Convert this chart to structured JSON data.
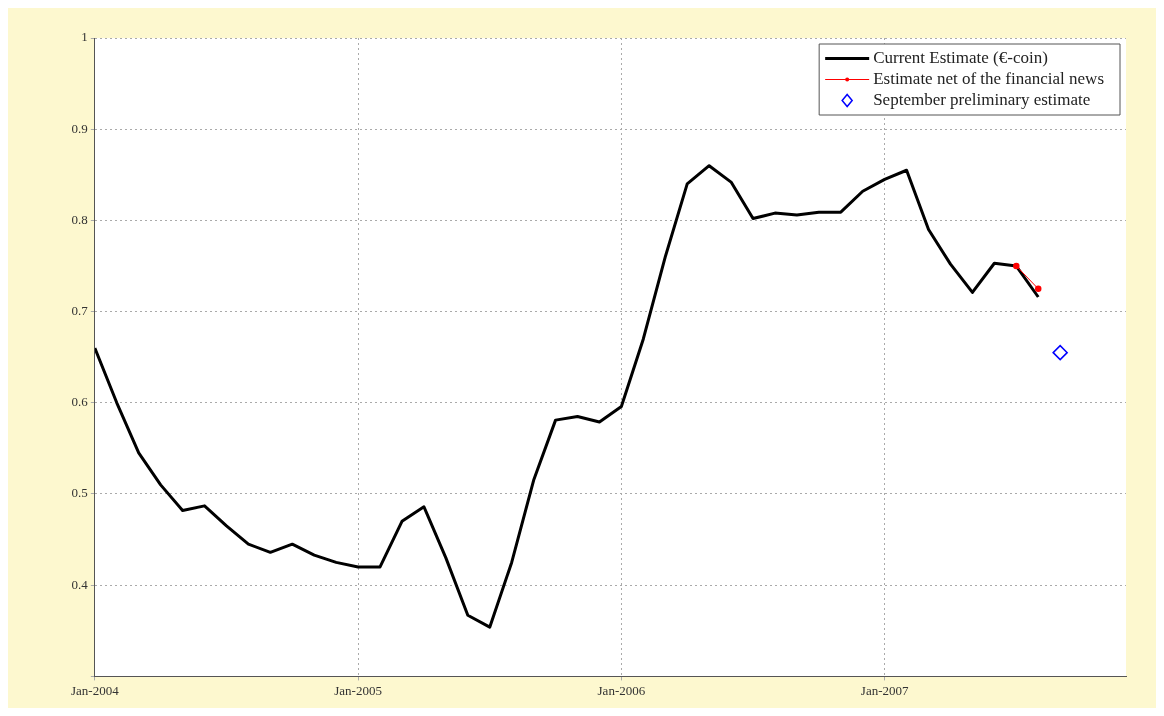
{
  "chart_data": {
    "type": "line",
    "x": [
      "2004-01",
      "2004-02",
      "2004-03",
      "2004-04",
      "2004-05",
      "2004-06",
      "2004-07",
      "2004-08",
      "2004-09",
      "2004-10",
      "2004-11",
      "2004-12",
      "2005-01",
      "2005-02",
      "2005-03",
      "2005-04",
      "2005-05",
      "2005-06",
      "2005-07",
      "2005-08",
      "2005-09",
      "2005-10",
      "2005-11",
      "2005-12",
      "2006-01",
      "2006-02",
      "2006-03",
      "2006-04",
      "2006-05",
      "2006-06",
      "2006-07",
      "2006-08",
      "2006-09",
      "2006-10",
      "2006-11",
      "2006-12",
      "2007-01",
      "2007-02",
      "2007-03",
      "2007-04",
      "2007-05",
      "2007-06",
      "2007-07",
      "2007-08"
    ],
    "series": [
      {
        "name": "Current Estimate (€-coin)",
        "color": "#000000",
        "marker": "none",
        "values": [
          0.66,
          0.6,
          0.545,
          0.51,
          0.482,
          0.487,
          0.465,
          0.445,
          0.436,
          0.445,
          0.433,
          0.425,
          0.42,
          0.42,
          0.47,
          0.486,
          0.43,
          0.367,
          0.354,
          0.425,
          0.515,
          0.581,
          0.585,
          0.579,
          0.596,
          0.67,
          0.76,
          0.84,
          0.86,
          0.842,
          0.802,
          0.808,
          0.806,
          0.809,
          0.809,
          0.832,
          0.845,
          0.855,
          0.79,
          0.752,
          0.721,
          0.753,
          0.75,
          0.716
        ]
      },
      {
        "name": "Estimate net of the financial news",
        "color": "#ff0000",
        "type": "line",
        "marker": "circle",
        "x": [
          "2007-07",
          "2007-08"
        ],
        "values": [
          0.75,
          0.725
        ]
      },
      {
        "name": "September preliminary estimate",
        "color": "#0000ff",
        "type": "scatter",
        "marker": "diamond",
        "x": [
          "2007-09"
        ],
        "values": [
          0.655
        ]
      }
    ],
    "xlim": [
      "2004-01",
      "2007-12"
    ],
    "xticks": [
      {
        "value": "2004-01",
        "label": "Jan-2004"
      },
      {
        "value": "2005-01",
        "label": "Jan-2005"
      },
      {
        "value": "2006-01",
        "label": "Jan-2006"
      },
      {
        "value": "2007-01",
        "label": "Jan-2007"
      }
    ],
    "ylim": [
      0.3,
      1
    ],
    "yticks": [
      {
        "value": 0.3,
        "label": null
      },
      0.4,
      0.5,
      0.6,
      0.7,
      0.8,
      0.9,
      1
    ],
    "grid": true,
    "legend": "top right",
    "line_style": "solid"
  }
}
